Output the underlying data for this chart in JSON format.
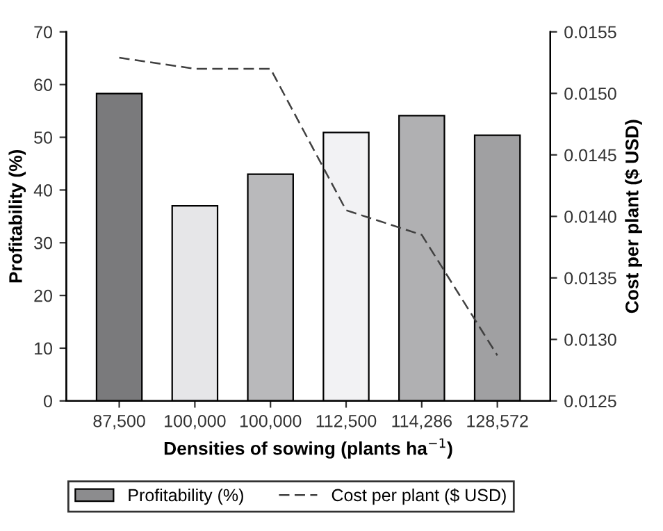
{
  "chart_data": {
    "type": "bar",
    "categories": [
      "87,500",
      "100,000",
      "100,000",
      "112,500",
      "114,286",
      "128,572"
    ],
    "xlabel": "Densities of sowing (plants ha$^{−1}$)",
    "ylabel": "Profitability (%)",
    "y2label": "Cost per plant ($ USD)",
    "series": [
      {
        "name": "Profitability (%)",
        "color": "#8c8c8e",
        "colors": [
          "#7a7a7c",
          "#e6e6e8",
          "#b9b9bb",
          "#f2f2f4",
          "#b0b0b2",
          "#a0a0a2"
        ],
        "values": [
          58.3,
          37.0,
          43.0,
          50.9,
          54.1,
          50.4
        ]
      },
      {
        "name": "Cost per plant ($ USD)",
        "type": "line",
        "axis": "y2",
        "color": "#404040",
        "line_style": "dashed",
        "marker": "none",
        "values": [
          0.01529,
          0.0152,
          0.0152,
          0.01405,
          0.01385,
          0.01287
        ]
      }
    ],
    "ylim": [
      0,
      70
    ],
    "yticks": [
      0,
      10,
      20,
      30,
      40,
      50,
      60,
      70
    ],
    "y2lim": [
      0.0125,
      0.0155
    ],
    "y2ticks": [
      {
        "value": 0.0125,
        "label": "0.0125"
      },
      {
        "value": 0.013,
        "label": "0.0130"
      },
      {
        "value": 0.0135,
        "label": "0.0135"
      },
      {
        "value": 0.014,
        "label": "0.0140"
      },
      {
        "value": 0.0145,
        "label": "0.0145"
      },
      {
        "value": 0.015,
        "label": "0.0150"
      },
      {
        "value": 0.0155,
        "label": "0.0155"
      }
    ],
    "grid": false,
    "legend": "bottom"
  }
}
